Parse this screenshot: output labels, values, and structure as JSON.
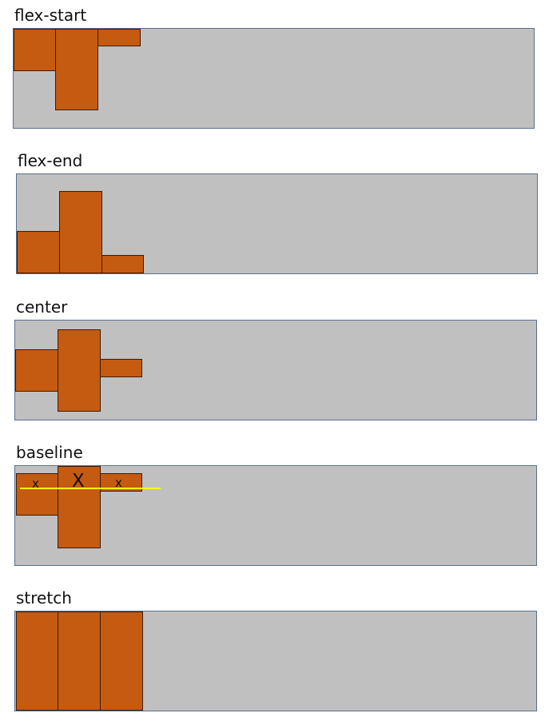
{
  "sections": [
    {
      "label": "flex-start"
    },
    {
      "label": "flex-end"
    },
    {
      "label": "center"
    },
    {
      "label": "baseline",
      "item_texts": [
        "x",
        "X",
        "x"
      ]
    },
    {
      "label": "stretch"
    }
  ],
  "colors": {
    "container": "#c0c0c0",
    "container_border": "#5a6f8c",
    "item": "#c55a11",
    "item_border": "#3a1d06",
    "baseline_line": "#ffff00"
  }
}
